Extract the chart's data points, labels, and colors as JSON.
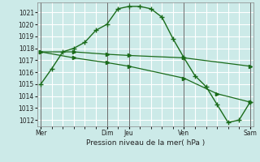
{
  "bg_color": "#cceae8",
  "grid_color": "#ffffff",
  "line_color": "#1a6b1a",
  "marker_color": "#1a6b1a",
  "xlabel_text": "Pression niveau de la mer( hPa )",
  "ylim": [
    1011.5,
    1021.8
  ],
  "yticks": [
    1012,
    1013,
    1014,
    1015,
    1016,
    1017,
    1018,
    1019,
    1020,
    1021
  ],
  "xtick_labels": [
    "Mer",
    "Dim",
    "Jeu",
    "Ven",
    "Sam"
  ],
  "xtick_positions": [
    0,
    6,
    8,
    13,
    19
  ],
  "vline_positions": [
    0,
    6,
    8,
    13,
    19
  ],
  "xlim": [
    -0.3,
    19.3
  ],
  "series1": {
    "x": [
      0,
      1,
      2,
      3,
      4,
      5,
      6,
      7,
      8,
      9,
      10,
      11,
      12,
      13,
      14,
      15,
      16,
      17,
      18,
      19
    ],
    "y": [
      1015.0,
      1016.3,
      1017.7,
      1018.0,
      1018.5,
      1019.5,
      1020.0,
      1021.3,
      1021.5,
      1021.5,
      1021.3,
      1020.6,
      1018.8,
      1017.2,
      1015.7,
      1014.8,
      1013.3,
      1011.8,
      1012.0,
      1013.5
    ]
  },
  "series2": {
    "x": [
      0,
      3,
      6,
      8,
      13,
      19
    ],
    "y": [
      1017.7,
      1017.7,
      1017.5,
      1017.4,
      1017.2,
      1016.5
    ]
  },
  "series3": {
    "x": [
      0,
      3,
      6,
      8,
      13,
      16,
      19
    ],
    "y": [
      1017.7,
      1017.2,
      1016.8,
      1016.5,
      1015.5,
      1014.2,
      1013.5
    ]
  }
}
